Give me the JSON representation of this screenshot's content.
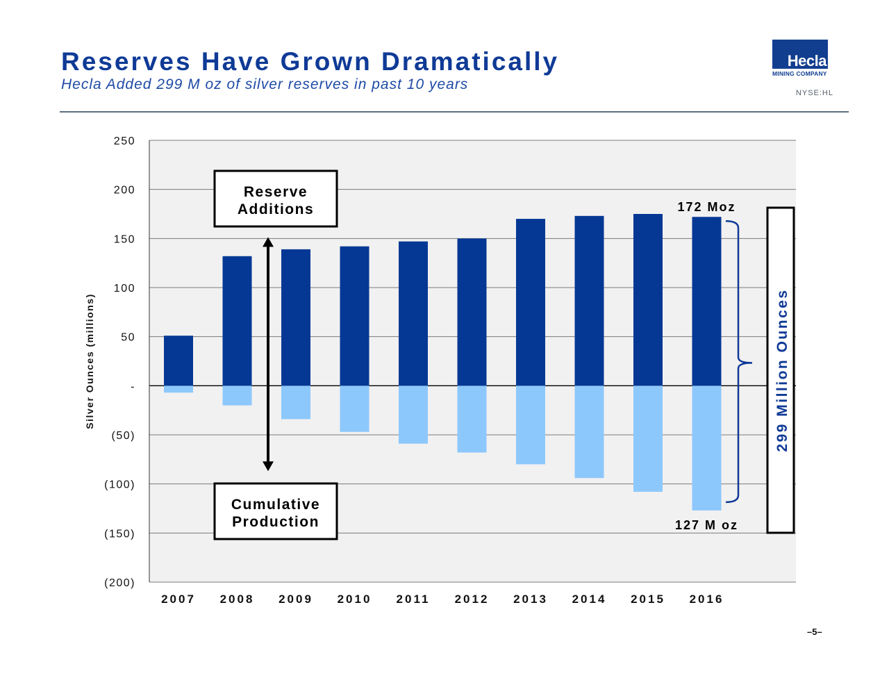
{
  "header": {
    "title": "Reserves Have Grown Dramatically",
    "subtitle": "Hecla Added 299 M oz of silver reserves in past 10 years",
    "logo_text": "Hecla",
    "logo_subtext": "MINING COMPANY",
    "ticker": "NYSE:HL"
  },
  "footer": {
    "page": "–5–"
  },
  "colors": {
    "title": "#0f3a96",
    "reserves": "#053894",
    "production": "#8dc8fc",
    "plot_bg": "#f1f1f1",
    "gridline": "#7a7a7a"
  },
  "chart_data": {
    "type": "bar",
    "stacked": true,
    "categories": [
      "2007",
      "2008",
      "2009",
      "2010",
      "2011",
      "2012",
      "2013",
      "2014",
      "2015",
      "2016"
    ],
    "series": [
      {
        "values": [
          51,
          132,
          139,
          142,
          147,
          150,
          170,
          173,
          175,
          172
        ]
      },
      {
        "values": [
          -7,
          -20,
          -34,
          -47,
          -59,
          -68,
          -80,
          -94,
          -108,
          -127
        ]
      }
    ],
    "ylabel": "Silver Ounces (millions)",
    "ylim": [
      -200,
      250
    ],
    "ytick_values": [
      250,
      200,
      150,
      100,
      50,
      0,
      -50,
      -100,
      -150,
      -200
    ],
    "ytick_labels": [
      "250",
      "200",
      "150",
      "100",
      "50",
      "-",
      "(50)",
      "(100)",
      "(150)",
      "(200)"
    ],
    "grid": true,
    "annotations": {
      "reserve_box": [
        "Reserve",
        "Additions"
      ],
      "production_box": [
        "Cumulative",
        "Production"
      ],
      "top_value": "172 Moz",
      "bottom_value": "127 M oz",
      "total_box": "299 Million Ounces"
    }
  }
}
